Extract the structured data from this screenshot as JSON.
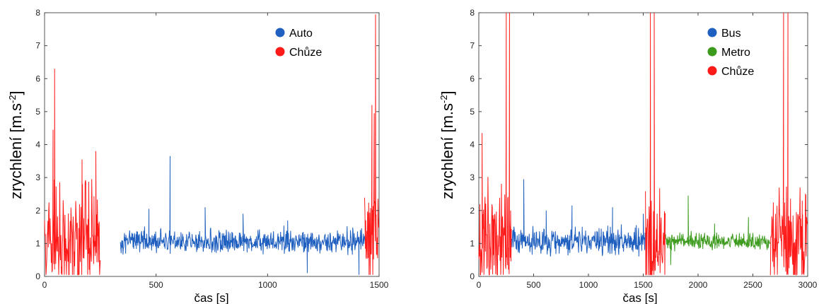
{
  "chart_data": [
    {
      "type": "line",
      "xlabel": "čas [s]",
      "ylabel": "zrychlení [m.s",
      "ylabel_sup": "-2",
      "ylabel_close": "]",
      "xlim": [
        0,
        1500
      ],
      "ylim": [
        0,
        8
      ],
      "xticks": [
        0,
        500,
        1000,
        1500
      ],
      "yticks": [
        0,
        1,
        2,
        3,
        4,
        5,
        6,
        7,
        8
      ],
      "grid": false,
      "legend_position": "top-right",
      "series": [
        {
          "name": "Auto",
          "color": "#1f5fbf",
          "segments": [
            [
              340,
              1440
            ]
          ],
          "baseline": 1.05,
          "noise": 0.32,
          "spikes": [
            [
              563,
              3.65
            ],
            [
              468,
              2.05
            ],
            [
              720,
              2.1
            ],
            [
              1090,
              1.7
            ],
            [
              1178,
              0.1
            ],
            [
              1410,
              0.05
            ],
            [
              890,
              1.9
            ]
          ]
        },
        {
          "name": "Chůze",
          "color": "#ff1a1a",
          "segments": [
            [
              0,
              250
            ],
            [
              1435,
              1500
            ]
          ],
          "baseline": 1.1,
          "noise": 1.5,
          "spikes": [
            [
              45,
              6.3
            ],
            [
              38,
              4.45
            ],
            [
              168,
              3.55
            ],
            [
              230,
              3.8
            ],
            [
              1468,
              5.2
            ],
            [
              1478,
              4.95
            ],
            [
              1484,
              7.95
            ]
          ]
        }
      ]
    },
    {
      "type": "line",
      "xlabel": "čas [s]",
      "ylabel": "zrychlení [m.s",
      "ylabel_sup": "-2",
      "ylabel_close": "]",
      "xlim": [
        0,
        3000
      ],
      "ylim": [
        0,
        8
      ],
      "xticks": [
        0,
        500,
        1000,
        1500,
        2000,
        2500,
        3000
      ],
      "yticks": [
        0,
        1,
        2,
        3,
        4,
        5,
        6,
        7,
        8
      ],
      "grid": false,
      "legend_position": "top-right",
      "series": [
        {
          "name": "Bus",
          "color": "#1f5fbf",
          "segments": [
            [
              300,
              1520
            ]
          ],
          "baseline": 1.05,
          "noise": 0.35,
          "spikes": [
            [
              410,
              2.95
            ],
            [
              615,
              2.0
            ],
            [
              850,
              2.15
            ],
            [
              1220,
              2.1
            ],
            [
              1500,
              1.9
            ]
          ]
        },
        {
          "name": "Metro",
          "color": "#3c9a1c",
          "segments": [
            [
              1700,
              2660
            ]
          ],
          "baseline": 1.05,
          "noise": 0.22,
          "spikes": [
            [
              1910,
              2.45
            ],
            [
              2460,
              1.8
            ],
            [
              1750,
              0.35
            ],
            [
              2150,
              1.6
            ]
          ]
        },
        {
          "name": "Chůze",
          "color": "#ff1a1a",
          "segments": [
            [
              0,
              300
            ],
            [
              1520,
              1700
            ],
            [
              2660,
              3000
            ]
          ],
          "baseline": 1.1,
          "noise": 1.4,
          "spikes": [
            [
              30,
              4.35
            ],
            [
              250,
              8.0
            ],
            [
              280,
              8.0
            ],
            [
              1565,
              8.0
            ],
            [
              1600,
              8.0
            ],
            [
              2780,
              8.0
            ],
            [
              2820,
              8.0
            ],
            [
              2950,
              2.3
            ]
          ]
        }
      ]
    }
  ]
}
